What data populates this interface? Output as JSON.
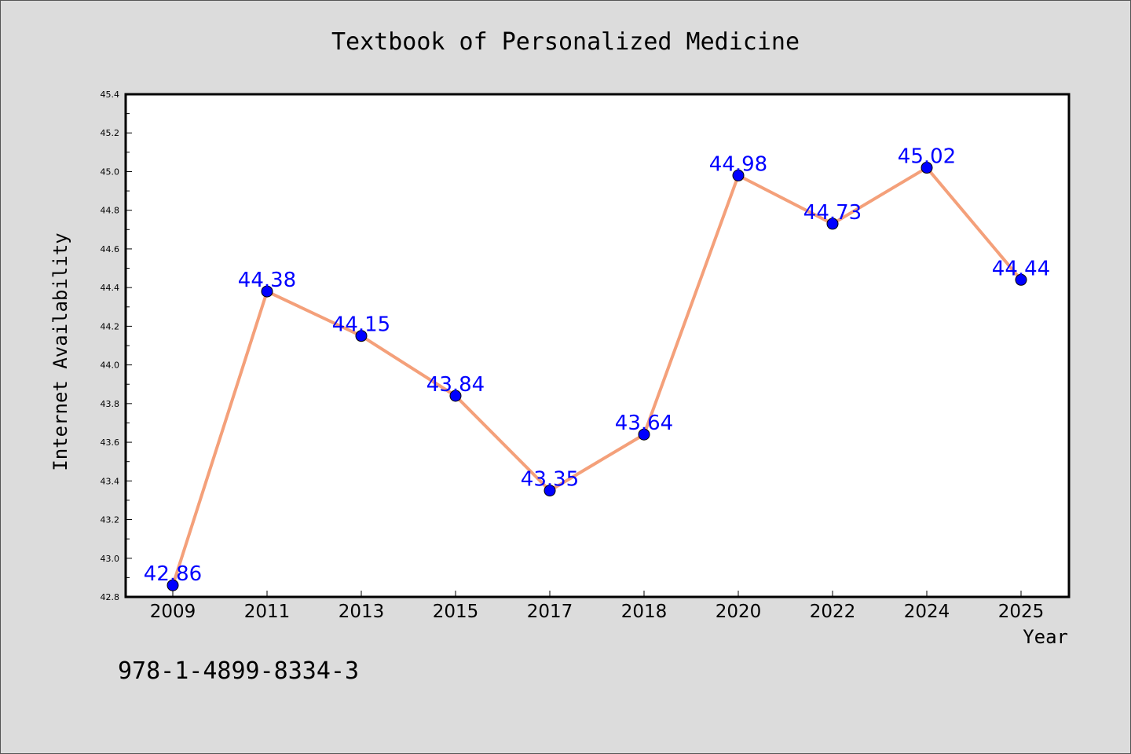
{
  "chart_data": {
    "type": "line",
    "title": "Textbook of Personalized Medicine",
    "xlabel": "Year",
    "ylabel": "Internet Availability",
    "categories": [
      "2009",
      "2011",
      "2013",
      "2015",
      "2017",
      "2018",
      "2020",
      "2022",
      "2024",
      "2025"
    ],
    "series": [
      {
        "values": [
          42.86,
          44.38,
          44.15,
          43.84,
          43.35,
          43.64,
          44.98,
          44.73,
          45.02,
          44.44
        ],
        "labels": [
          "42.86",
          "44.38",
          "44.15",
          "43.84",
          "43.35",
          "43.64",
          "44.98",
          "44.73",
          "45.02",
          "44.44"
        ],
        "line_color": "#f4a07a",
        "marker_color": "#0000ff"
      }
    ],
    "ylim": [
      42.8,
      45.4
    ],
    "yticks": [
      "42.8",
      "43.0",
      "43.2",
      "43.4",
      "43.6",
      "43.8",
      "44.0",
      "44.2",
      "44.4",
      "44.6",
      "44.8",
      "45.0",
      "45.2",
      "45.4"
    ],
    "grid": false,
    "legend": "none"
  },
  "footer": {
    "isbn": "978-1-4899-8334-3"
  }
}
